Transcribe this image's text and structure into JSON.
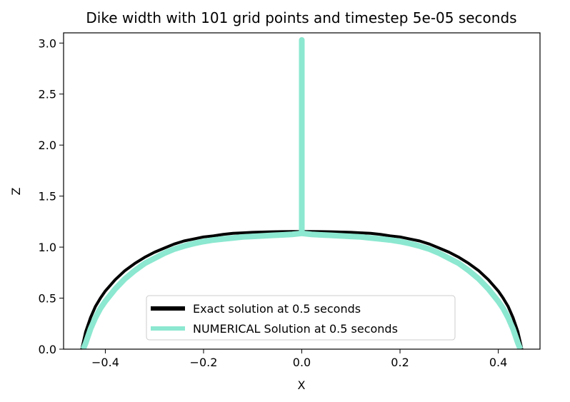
{
  "chart_data": {
    "type": "line",
    "title": "Dike width with 101 grid points and timestep 5e-05 seconds",
    "xlabel": "X",
    "ylabel": "Z",
    "xlim": [
      -0.485,
      0.485
    ],
    "ylim": [
      0.0,
      3.1
    ],
    "xticks": [
      -0.4,
      -0.2,
      0.0,
      0.2,
      0.4
    ],
    "xtick_labels": [
      "−0.4",
      "−0.2",
      "0.0",
      "0.2",
      "0.4"
    ],
    "yticks": [
      0.0,
      0.5,
      1.0,
      1.5,
      2.0,
      2.5,
      3.0
    ],
    "ytick_labels": [
      "0.0",
      "0.5",
      "1.0",
      "1.5",
      "2.0",
      "2.5",
      "3.0"
    ],
    "grid": false,
    "legend_position": "bottom-center",
    "series": [
      {
        "name": "Exact solution at 0.5 seconds",
        "color": "#000000",
        "points": [
          [
            -0.448,
            0.0
          ],
          [
            -0.44,
            0.17
          ],
          [
            -0.43,
            0.31
          ],
          [
            -0.42,
            0.42
          ],
          [
            -0.41,
            0.5
          ],
          [
            -0.4,
            0.57
          ],
          [
            -0.38,
            0.68
          ],
          [
            -0.36,
            0.77
          ],
          [
            -0.34,
            0.84
          ],
          [
            -0.32,
            0.9
          ],
          [
            -0.3,
            0.95
          ],
          [
            -0.28,
            0.99
          ],
          [
            -0.26,
            1.03
          ],
          [
            -0.24,
            1.06
          ],
          [
            -0.22,
            1.08
          ],
          [
            -0.2,
            1.1
          ],
          [
            -0.18,
            1.11
          ],
          [
            -0.16,
            1.125
          ],
          [
            -0.14,
            1.135
          ],
          [
            -0.12,
            1.14
          ],
          [
            -0.1,
            1.145
          ],
          [
            -0.08,
            1.148
          ],
          [
            -0.06,
            1.15
          ],
          [
            -0.04,
            1.152
          ],
          [
            -0.02,
            1.153
          ],
          [
            0.0,
            1.153
          ],
          [
            0.02,
            1.153
          ],
          [
            0.04,
            1.152
          ],
          [
            0.06,
            1.15
          ],
          [
            0.08,
            1.148
          ],
          [
            0.1,
            1.145
          ],
          [
            0.12,
            1.14
          ],
          [
            0.14,
            1.135
          ],
          [
            0.16,
            1.125
          ],
          [
            0.18,
            1.11
          ],
          [
            0.2,
            1.1
          ],
          [
            0.22,
            1.08
          ],
          [
            0.24,
            1.06
          ],
          [
            0.26,
            1.03
          ],
          [
            0.28,
            0.99
          ],
          [
            0.3,
            0.95
          ],
          [
            0.32,
            0.9
          ],
          [
            0.34,
            0.84
          ],
          [
            0.36,
            0.77
          ],
          [
            0.38,
            0.68
          ],
          [
            0.4,
            0.57
          ],
          [
            0.41,
            0.5
          ],
          [
            0.42,
            0.42
          ],
          [
            0.43,
            0.31
          ],
          [
            0.44,
            0.17
          ],
          [
            0.448,
            0.0
          ]
        ]
      },
      {
        "name": "NUMERICAL Solution at 0.5 seconds",
        "color": "#8ce8d0",
        "points": [
          [
            -0.445,
            0.0
          ],
          [
            -0.44,
            0.06
          ],
          [
            -0.43,
            0.2
          ],
          [
            -0.42,
            0.31
          ],
          [
            -0.41,
            0.4
          ],
          [
            -0.4,
            0.47
          ],
          [
            -0.38,
            0.59
          ],
          [
            -0.36,
            0.69
          ],
          [
            -0.34,
            0.77
          ],
          [
            -0.32,
            0.84
          ],
          [
            -0.3,
            0.89
          ],
          [
            -0.28,
            0.94
          ],
          [
            -0.26,
            0.98
          ],
          [
            -0.24,
            1.01
          ],
          [
            -0.22,
            1.035
          ],
          [
            -0.2,
            1.055
          ],
          [
            -0.18,
            1.07
          ],
          [
            -0.16,
            1.08
          ],
          [
            -0.14,
            1.09
          ],
          [
            -0.12,
            1.1
          ],
          [
            -0.1,
            1.105
          ],
          [
            -0.08,
            1.11
          ],
          [
            -0.06,
            1.115
          ],
          [
            -0.04,
            1.12
          ],
          [
            -0.02,
            1.125
          ],
          [
            0.0,
            1.135
          ],
          [
            0.0,
            3.03
          ],
          [
            0.0,
            1.135
          ],
          [
            0.02,
            1.125
          ],
          [
            0.04,
            1.12
          ],
          [
            0.06,
            1.115
          ],
          [
            0.08,
            1.11
          ],
          [
            0.1,
            1.105
          ],
          [
            0.12,
            1.1
          ],
          [
            0.14,
            1.09
          ],
          [
            0.16,
            1.08
          ],
          [
            0.18,
            1.07
          ],
          [
            0.2,
            1.055
          ],
          [
            0.22,
            1.035
          ],
          [
            0.24,
            1.01
          ],
          [
            0.26,
            0.98
          ],
          [
            0.28,
            0.94
          ],
          [
            0.3,
            0.89
          ],
          [
            0.32,
            0.84
          ],
          [
            0.34,
            0.77
          ],
          [
            0.36,
            0.69
          ],
          [
            0.38,
            0.59
          ],
          [
            0.4,
            0.47
          ],
          [
            0.41,
            0.4
          ],
          [
            0.42,
            0.31
          ],
          [
            0.43,
            0.2
          ],
          [
            0.44,
            0.06
          ],
          [
            0.445,
            0.0
          ]
        ]
      }
    ]
  }
}
